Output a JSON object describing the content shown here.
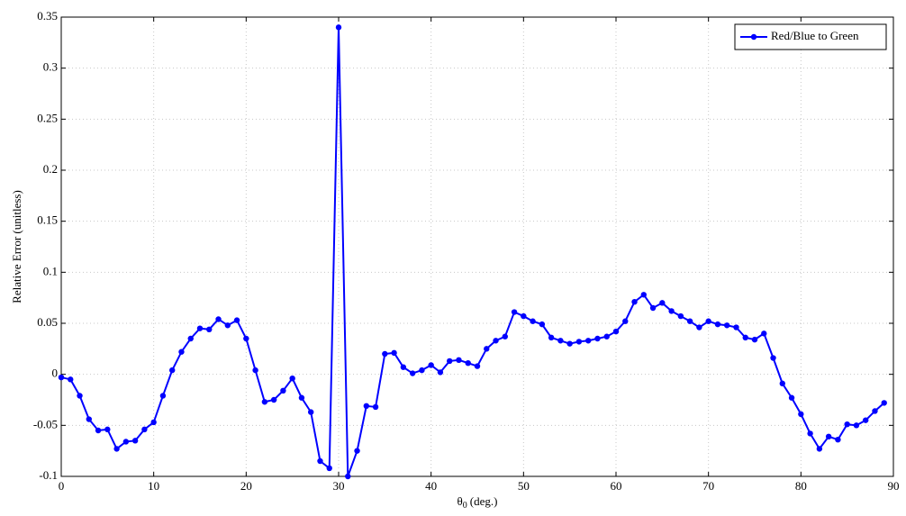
{
  "chart_data": {
    "type": "line",
    "ylabel": "Relative Error (unitless)",
    "xlabel": {
      "symbol": "θ",
      "subscript": "0",
      "unit": "(deg.)"
    },
    "x": [
      0,
      1,
      2,
      3,
      4,
      5,
      6,
      7,
      8,
      9,
      10,
      11,
      12,
      13,
      14,
      15,
      16,
      17,
      18,
      19,
      20,
      21,
      22,
      23,
      24,
      25,
      26,
      27,
      28,
      29,
      30,
      31,
      32,
      33,
      34,
      35,
      36,
      37,
      38,
      39,
      40,
      41,
      42,
      43,
      44,
      45,
      46,
      47,
      48,
      49,
      50,
      51,
      52,
      53,
      54,
      55,
      56,
      57,
      58,
      59,
      60,
      61,
      62,
      63,
      64,
      65,
      66,
      67,
      68,
      69,
      70,
      71,
      72,
      73,
      74,
      75,
      76,
      77,
      78,
      79,
      80,
      81,
      82,
      83,
      84,
      85,
      86,
      87,
      88,
      89
    ],
    "series": [
      {
        "name": "Red/Blue to Green",
        "color": "#0000ff",
        "values": [
          -0.003,
          -0.005,
          -0.021,
          -0.044,
          -0.055,
          -0.054,
          -0.073,
          -0.066,
          -0.065,
          -0.054,
          -0.047,
          -0.021,
          0.004,
          0.022,
          0.035,
          0.045,
          0.044,
          0.054,
          0.048,
          0.053,
          0.035,
          0.004,
          -0.027,
          -0.025,
          -0.016,
          -0.004,
          -0.023,
          -0.037,
          -0.085,
          -0.092,
          0.34,
          -0.1,
          -0.075,
          -0.031,
          -0.032,
          0.02,
          0.021,
          0.007,
          0.001,
          0.004,
          0.009,
          0.002,
          0.013,
          0.014,
          0.011,
          0.008,
          0.025,
          0.033,
          0.037,
          0.061,
          0.057,
          0.052,
          0.049,
          0.036,
          0.033,
          0.03,
          0.032,
          0.033,
          0.035,
          0.037,
          0.042,
          0.052,
          0.071,
          0.078,
          0.065,
          0.07,
          0.062,
          0.057,
          0.052,
          0.046,
          0.052,
          0.049,
          0.048,
          0.046,
          0.036,
          0.034,
          0.04,
          0.016,
          -0.009,
          -0.023,
          -0.039,
          -0.058,
          -0.073,
          -0.061,
          -0.064,
          -0.049,
          -0.05,
          -0.045,
          -0.036,
          -0.028
        ]
      }
    ],
    "xlim": [
      0,
      90
    ],
    "xticks": [
      0,
      10,
      20,
      30,
      40,
      50,
      60,
      70,
      80,
      90
    ],
    "ylim": [
      -0.1,
      0.35
    ],
    "yticks": [
      -0.1,
      -0.05,
      0,
      0.05,
      0.1,
      0.15,
      0.2,
      0.25,
      0.3,
      0.35
    ],
    "grid": true,
    "legend": "top-right"
  }
}
